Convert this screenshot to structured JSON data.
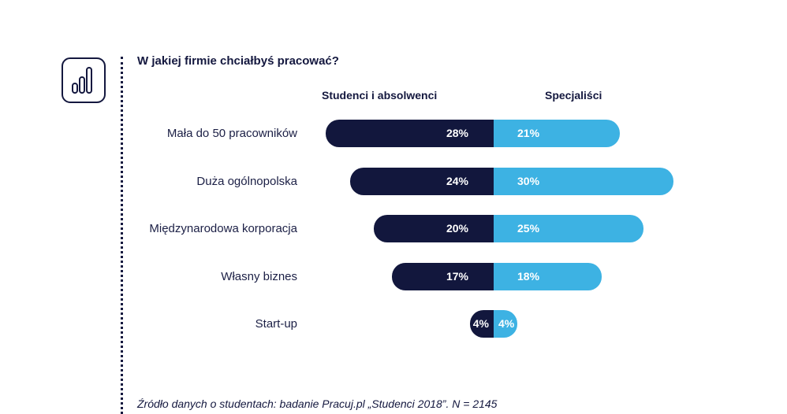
{
  "title": "W jakiej firmie chciałbyś pracować?",
  "source": "Źródło danych o studentach: badanie Pracuj.pl „Studenci 2018”. N = 2145",
  "icon": "bar-chart-icon",
  "colors": {
    "left": "#12173d",
    "right": "#3db2e3",
    "text": "#14183f"
  },
  "chart_data": {
    "type": "bar",
    "orientation": "horizontal-diverging",
    "categories": [
      "Mała do 50 pracowników",
      "Duża ogólnopolska",
      "Międzynarodowa korporacja",
      "Własny biznes",
      "Start-up"
    ],
    "series": [
      {
        "name": "Studenci i absolwenci",
        "values": [
          28,
          24,
          20,
          17,
          4
        ],
        "labels": [
          "28%",
          "24%",
          "20%",
          "17%",
          "4%"
        ]
      },
      {
        "name": "Specjaliści",
        "values": [
          21,
          30,
          25,
          18,
          4
        ],
        "labels": [
          "21%",
          "30%",
          "25%",
          "18%",
          "4%"
        ]
      }
    ],
    "unit": "%"
  }
}
